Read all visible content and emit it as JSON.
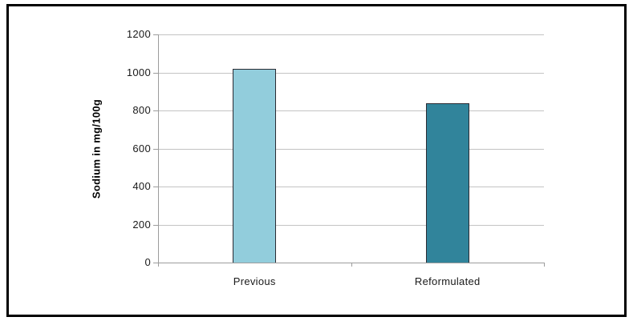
{
  "chart_data": {
    "type": "bar",
    "categories": [
      "Previous",
      "Reformulated"
    ],
    "values": [
      1020,
      840
    ],
    "title": "",
    "xlabel": "",
    "ylabel": "Sodium in mg/100g",
    "ylim": [
      0,
      1200
    ],
    "yticks": [
      0,
      200,
      400,
      600,
      800,
      1000,
      1200
    ],
    "grid": true,
    "legend": false,
    "bar_colors": [
      "#92CDDC",
      "#31849B"
    ],
    "bar_border_color": "#2B2B33",
    "gridline_color": "#C3C3C3",
    "axis_color": "#9C9C9C",
    "text_color": "#1A1A1A",
    "frame_border_color": "#000000",
    "background": "#FFFFFF"
  }
}
